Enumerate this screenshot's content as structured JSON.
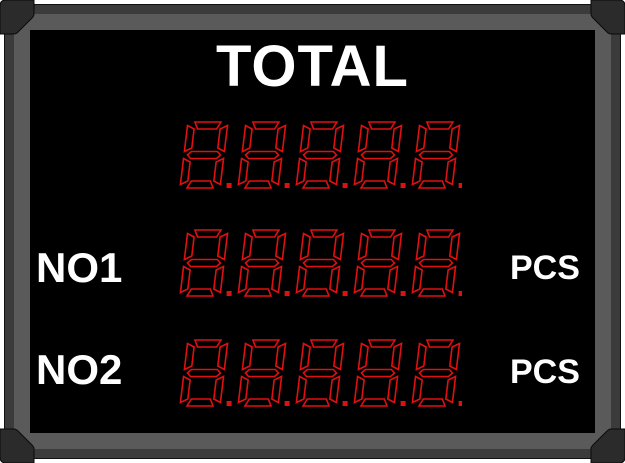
{
  "board": {
    "title": "TOTAL",
    "rows": [
      {
        "label": "",
        "unit": "",
        "digits": 5
      },
      {
        "label": "NO1",
        "unit": "PCS",
        "digits": 5
      },
      {
        "label": "NO2",
        "unit": "PCS",
        "digits": 5
      }
    ],
    "colors": {
      "led": "#e01010",
      "screen": "#000000",
      "frame": "#3b3b3b",
      "text": "#ffffff"
    }
  }
}
